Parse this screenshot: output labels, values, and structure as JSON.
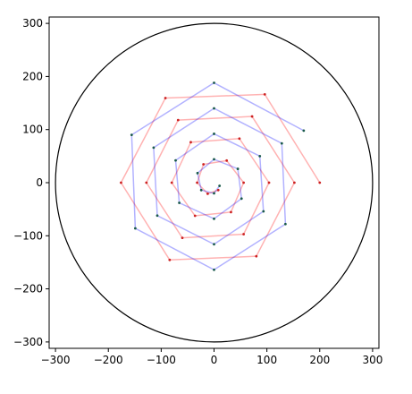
{
  "chart_data": {
    "type": "scatter-line",
    "xlim": [
      -312,
      312
    ],
    "ylim": [
      -312,
      312
    ],
    "xticks": [
      {
        "value": -300,
        "label": "−300"
      },
      {
        "value": -200,
        "label": "−200"
      },
      {
        "value": -100,
        "label": "−100"
      },
      0,
      100,
      200,
      300
    ],
    "yticks": [
      {
        "value": -300,
        "label": "−300"
      },
      {
        "value": -200,
        "label": "−200"
      },
      {
        "value": -100,
        "label": "−100"
      },
      0,
      100,
      200,
      300
    ],
    "circle_radius": 300,
    "circle_color": "#000000",
    "series": [
      {
        "color": "#ff0000",
        "marker_color": "#cc2222",
        "x": [
          200,
          96,
          -92,
          -176,
          -84,
          80,
          152,
          72,
          -68,
          -128,
          -60,
          56,
          104,
          48,
          -44,
          -80,
          -36,
          32,
          56,
          24,
          -20,
          -32,
          -12,
          8
        ],
        "values": [
          0,
          166.3,
          159.3,
          0,
          -145.5,
          -138.6,
          0,
          124.7,
          117.8,
          0,
          -103.9,
          -97,
          0,
          83.1,
          76.2,
          0,
          -62.4,
          -55.4,
          0,
          41.6,
          34.6,
          0,
          -20.8,
          -13.9
        ]
      },
      {
        "color": "#0000ff",
        "marker_color": "#1a5a4a",
        "x": [
          169.7,
          0,
          -155.9,
          -149,
          0,
          135.1,
          128.2,
          0,
          -114.3,
          -107.4,
          0,
          93.5,
          86.6,
          0,
          -72.7,
          -65.8,
          0,
          52,
          45,
          0,
          -31.2,
          -24.2,
          0,
          10.4
        ],
        "values": [
          98,
          188,
          90,
          -86,
          -164,
          -78,
          74,
          140,
          66,
          -62,
          -116,
          -54,
          50,
          92,
          42,
          -38,
          -68,
          -30,
          26,
          44,
          18,
          -14,
          -20,
          -6
        ]
      }
    ]
  }
}
